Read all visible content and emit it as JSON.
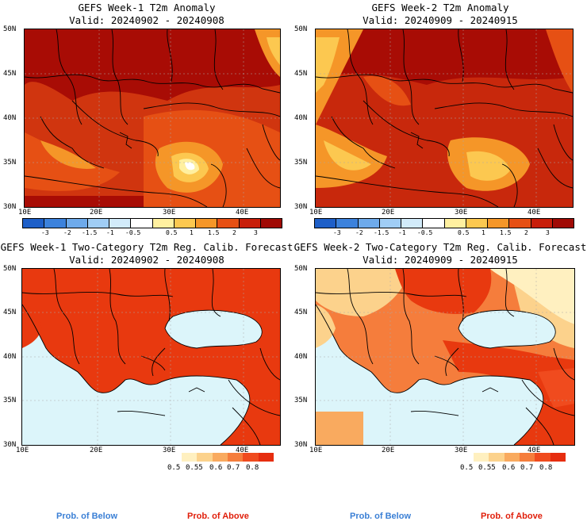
{
  "panels": [
    {
      "title": "GEFS Week-1 T2m Anomaly",
      "valid": "Valid: 20240902 - 20240908"
    },
    {
      "title": "GEFS Week-2 T2m Anomaly",
      "valid": "Valid: 20240909 - 20240915"
    },
    {
      "title": "GEFS Week-1 Two-Category T2m Reg. Calib. Forecast",
      "valid": "Valid: 20240902 - 20240908"
    },
    {
      "title": "GEFS Week-2 Two-Category T2m Reg. Calib. Forecast",
      "valid": "Valid: 20240909 - 20240915"
    }
  ],
  "axes": {
    "lat_labels": [
      "50N",
      "45N",
      "40N",
      "35N",
      "30N"
    ],
    "lon_labels": [
      "10E",
      "20E",
      "30E",
      "40E"
    ]
  },
  "anomaly_colorbar": {
    "labels": [
      "-3",
      "-2",
      "-1.5",
      "-1",
      "-0.5",
      "0.5",
      "1",
      "1.5",
      "2",
      "3"
    ],
    "colors": [
      "#1e5fc8",
      "#3c82dc",
      "#6eaaeb",
      "#a0cdf5",
      "#d2ebfa",
      "#ffffff",
      "#fff0a0",
      "#fcc850",
      "#f59628",
      "#e65014",
      "#c81e0a",
      "#a00a05"
    ]
  },
  "prob_colorbar": {
    "labels": [
      "0.5",
      "0.55",
      "0.6",
      "0.7",
      "0.8"
    ],
    "colors": [
      "#fff0c0",
      "#fcd28c",
      "#f9aa5f",
      "#f57d3c",
      "#f04b1e",
      "#e62d0f"
    ]
  },
  "sea_color": "#dcf5fa",
  "footer": {
    "below": "Prob. of Below",
    "above": "Prob. of Above",
    "below_color": "#3a7fd5",
    "above_color": "#e01e0a"
  }
}
